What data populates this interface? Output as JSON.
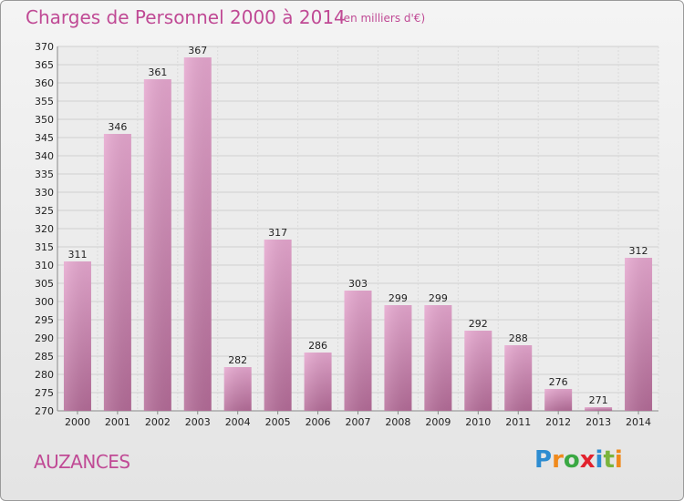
{
  "header": {
    "title": "Charges de Personnel 2000 à 2014",
    "subtitle": "(en milliers d'€)"
  },
  "footer": {
    "place": "AUZANCES",
    "logo_text": "Proxiti"
  },
  "colors": {
    "accent": "#c04a95",
    "bar_light": "#e6a7cf",
    "bar_dark": "#b46c98",
    "logo": [
      "#2d8cd1",
      "#f08a1c",
      "#3aa843",
      "#e2222d",
      "#2d8cd1",
      "#7ab43c",
      "#f08a1c"
    ]
  },
  "chart_data": {
    "type": "bar",
    "categories": [
      "2000",
      "2001",
      "2002",
      "2003",
      "2004",
      "2005",
      "2006",
      "2007",
      "2008",
      "2009",
      "2010",
      "2011",
      "2012",
      "2013",
      "2014"
    ],
    "values": [
      311,
      346,
      361,
      367,
      282,
      317,
      286,
      303,
      299,
      299,
      292,
      288,
      276,
      271,
      312
    ],
    "title": "Charges de Personnel 2000 à 2014",
    "subtitle": "(en milliers d'€)",
    "ylim": [
      270,
      370
    ],
    "yticks": [
      270,
      275,
      280,
      285,
      290,
      295,
      300,
      305,
      310,
      315,
      320,
      325,
      330,
      335,
      340,
      345,
      350,
      355,
      360,
      365,
      370
    ],
    "grid": true,
    "data_labels": true
  }
}
